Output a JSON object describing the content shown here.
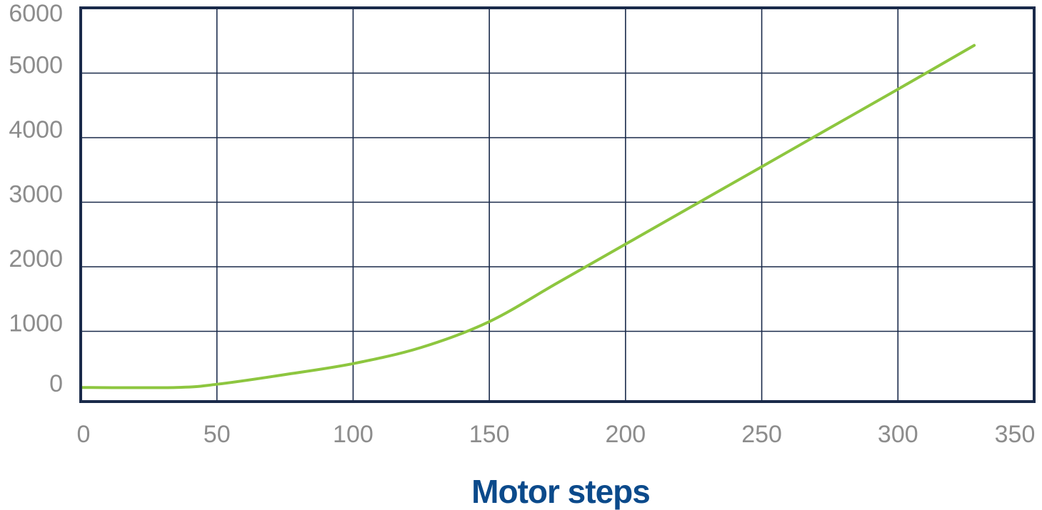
{
  "chart_data": {
    "type": "line",
    "title": "",
    "xlabel": "Motor steps",
    "ylabel": "",
    "xlim": [
      0,
      350
    ],
    "ylim": [
      0,
      6000
    ],
    "x_ticks": [
      "0",
      "50",
      "100",
      "150",
      "200",
      "250",
      "300",
      "350"
    ],
    "y_ticks": [
      "0",
      "1000",
      "2000",
      "3000",
      "4000",
      "5000",
      "6000"
    ],
    "grid": true,
    "legend": "none",
    "series": [
      {
        "color": "#8dc63f",
        "x": [
          0,
          35,
          50,
          75,
          100,
          125,
          150,
          175,
          200,
          225,
          250,
          275,
          300,
          328
        ],
        "y": [
          130,
          130,
          180,
          330,
          500,
          750,
          1150,
          1750,
          2350,
          2950,
          3550,
          4150,
          4750,
          5430
        ]
      }
    ],
    "colors": {
      "frame": "#1a2a4a",
      "grid": "#1a2a4a",
      "tick_text": "#8c8c8c",
      "xlabel_text": "#0b4a8b",
      "line": "#8dc63f"
    }
  }
}
